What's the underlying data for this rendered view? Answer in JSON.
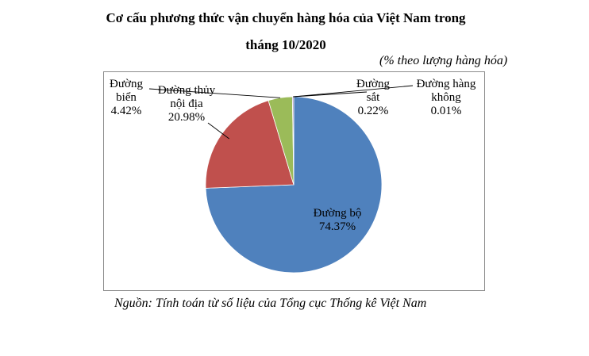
{
  "chart_data": {
    "type": "pie",
    "title_line1": "Cơ cấu phương thức vận chuyển hàng hóa của Việt Nam trong",
    "title_line2": "tháng 10/2020",
    "unit": "(% theo lượng hàng hóa)",
    "slices": [
      {
        "name_line1": "Đường bộ",
        "name_line2": "",
        "value": 74.37,
        "label": "74.37%",
        "color": "#4f81bd"
      },
      {
        "name_line1": "Đường thủy",
        "name_line2": "nội địa",
        "value": 20.98,
        "label": "20.98%",
        "color": "#c0504d"
      },
      {
        "name_line1": "Đường",
        "name_line2": "biển",
        "value": 4.42,
        "label": "4.42%",
        "color": "#9bbb59"
      },
      {
        "name_line1": "Đường",
        "name_line2": "sắt",
        "value": 0.22,
        "label": "0.22%",
        "color": "#8064a2"
      },
      {
        "name_line1": "Đường hàng",
        "name_line2": "không",
        "value": 0.01,
        "label": "0.01%",
        "color": "#4bacc6"
      }
    ],
    "start_angle_deg": 0,
    "direction": "clockwise"
  },
  "source": "Nguồn: Tính toán từ số liệu của Tổng cục Thống kê Việt Nam"
}
